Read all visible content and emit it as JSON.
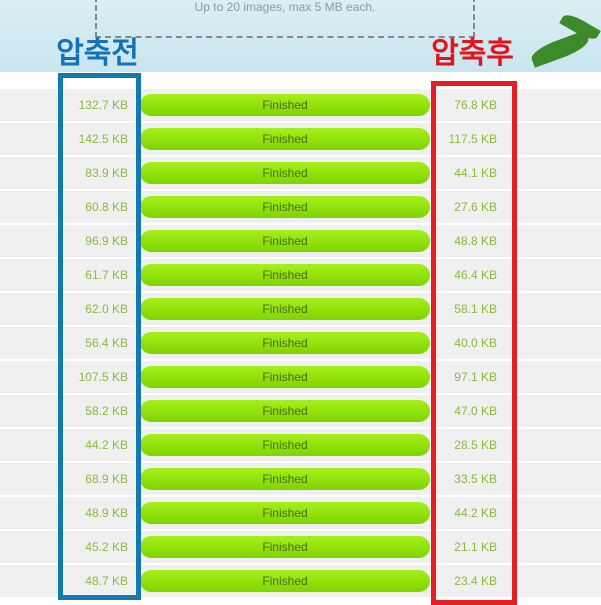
{
  "header": {
    "hint": "Up to 20 images, max 5 MB each.",
    "before_label": "압축전",
    "after_label": "압축후"
  },
  "table": {
    "rows": [
      [
        "132.7 KB",
        "Finished",
        "76.8 KB"
      ],
      [
        "142.5 KB",
        "Finished",
        "117.5 KB"
      ],
      [
        "83.9 KB",
        "Finished",
        "44.1 KB"
      ],
      [
        "60.8 KB",
        "Finished",
        "27.6 KB"
      ],
      [
        "96.9 KB",
        "Finished",
        "48.8 KB"
      ],
      [
        "61.7 KB",
        "Finished",
        "46.4 KB"
      ],
      [
        "62.0 KB",
        "Finished",
        "58.1 KB"
      ],
      [
        "56.4 KB",
        "Finished",
        "40.0 KB"
      ],
      [
        "107.5 KB",
        "Finished",
        "97.1 KB"
      ],
      [
        "58.2 KB",
        "Finished",
        "47.0 KB"
      ],
      [
        "44.2 KB",
        "Finished",
        "28.5 KB"
      ],
      [
        "68.9 KB",
        "Finished",
        "33.5 KB"
      ],
      [
        "48.9 KB",
        "Finished",
        "44.2 KB"
      ],
      [
        "45.2 KB",
        "Finished",
        "21.1 KB"
      ],
      [
        "48.7 KB",
        "Finished",
        "23.4 KB"
      ]
    ]
  }
}
